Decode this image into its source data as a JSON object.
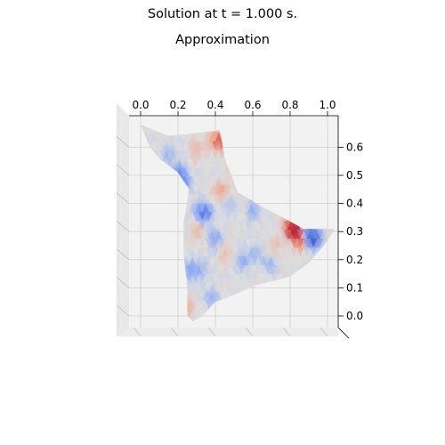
{
  "figure": {
    "suptitle": "Solution at t = 1.000 s.",
    "subtitle": "Approximation"
  },
  "chart_data": {
    "type": "surface",
    "title": "Approximation",
    "suptitle": "Solution at t = 1.000 s.",
    "colormap": "coolwarm",
    "grid": true,
    "view": "top-down 3D surface",
    "xlim": [
      -0.05,
      1.05
    ],
    "ylim": [
      -0.05,
      0.7
    ],
    "x_ticks": [
      "0.0",
      "0.2",
      "0.4",
      "0.6",
      "0.8",
      "1.0"
    ],
    "y_ticks": [
      "0.0",
      "0.1",
      "0.2",
      "0.3",
      "0.4",
      "0.5",
      "0.6"
    ],
    "domain_outline": [
      [
        0.0,
        0.68
      ],
      [
        0.15,
        0.64
      ],
      [
        0.3,
        0.65
      ],
      [
        0.42,
        0.66
      ],
      [
        0.43,
        0.64
      ],
      [
        0.45,
        0.56
      ],
      [
        0.52,
        0.44
      ],
      [
        0.62,
        0.4
      ],
      [
        0.76,
        0.35
      ],
      [
        0.87,
        0.31
      ],
      [
        1.04,
        0.31
      ],
      [
        0.98,
        0.25
      ],
      [
        0.9,
        0.19
      ],
      [
        0.8,
        0.14
      ],
      [
        0.62,
        0.11
      ],
      [
        0.48,
        0.07
      ],
      [
        0.4,
        0.05
      ],
      [
        0.33,
        0.0
      ],
      [
        0.28,
        -0.02
      ],
      [
        0.25,
        0.0
      ],
      [
        0.25,
        0.1
      ],
      [
        0.23,
        0.22
      ],
      [
        0.23,
        0.33
      ],
      [
        0.26,
        0.45
      ],
      [
        0.2,
        0.51
      ],
      [
        0.1,
        0.56
      ],
      [
        0.05,
        0.6
      ],
      [
        0.0,
        0.68
      ]
    ],
    "hotspots": [
      {
        "x": 0.83,
        "y": 0.31,
        "value": 1.0
      },
      {
        "x": 0.81,
        "y": 0.34,
        "value": 0.6
      },
      {
        "x": 0.86,
        "y": 0.27,
        "value": 0.5
      },
      {
        "x": 0.92,
        "y": 0.28,
        "value": -0.8
      },
      {
        "x": 0.9,
        "y": 0.31,
        "value": -0.5
      },
      {
        "x": 0.44,
        "y": 0.63,
        "value": 0.55
      },
      {
        "x": 0.4,
        "y": 0.63,
        "value": 0.45
      },
      {
        "x": 0.43,
        "y": 0.45,
        "value": 0.4
      },
      {
        "x": 0.3,
        "y": 0.6,
        "value": 0.3
      },
      {
        "x": 0.2,
        "y": 0.51,
        "value": -0.55
      },
      {
        "x": 0.23,
        "y": 0.48,
        "value": -0.45
      },
      {
        "x": 0.32,
        "y": 0.38,
        "value": -0.45
      },
      {
        "x": 0.35,
        "y": 0.37,
        "value": -0.5
      },
      {
        "x": 0.4,
        "y": 0.28,
        "value": -0.4
      },
      {
        "x": 0.27,
        "y": 0.17,
        "value": -0.45
      },
      {
        "x": 0.33,
        "y": 0.17,
        "value": -0.3
      },
      {
        "x": 0.3,
        "y": 0.31,
        "value": 0.3
      },
      {
        "x": 0.25,
        "y": 0.04,
        "value": 0.3
      },
      {
        "x": 0.55,
        "y": 0.2,
        "value": -0.35
      },
      {
        "x": 0.62,
        "y": 0.23,
        "value": -0.3
      },
      {
        "x": 0.6,
        "y": 0.38,
        "value": -0.35
      },
      {
        "x": 0.69,
        "y": 0.19,
        "value": -0.3
      },
      {
        "x": 0.72,
        "y": 0.26,
        "value": 0.25
      },
      {
        "x": 0.45,
        "y": 0.23,
        "value": 0.25
      },
      {
        "x": 0.15,
        "y": 0.58,
        "value": -0.3
      },
      {
        "x": 0.5,
        "y": 0.56,
        "value": 0.2
      },
      {
        "x": 0.38,
        "y": 0.07,
        "value": -0.3
      },
      {
        "x": 0.47,
        "y": 0.4,
        "value": -0.25
      }
    ]
  }
}
